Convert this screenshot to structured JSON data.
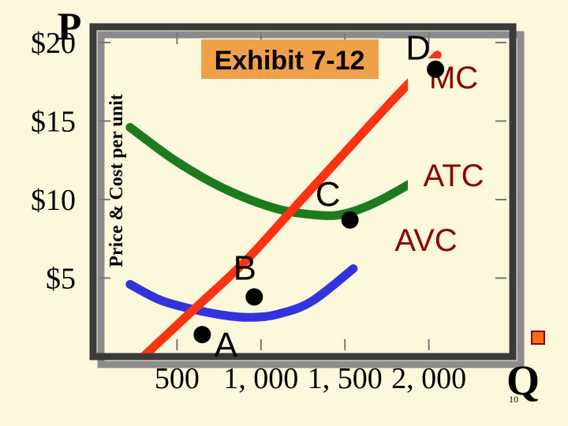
{
  "chart_data": {
    "type": "line",
    "title": "Exhibit 7-12",
    "xlabel": "Q",
    "ylabel": "Price & Cost per unit",
    "y_axis_letter": "P",
    "xlim": [
      0,
      2500
    ],
    "ylim": [
      0,
      21
    ],
    "x_ticks": [
      500,
      1000,
      1500,
      2000
    ],
    "x_tick_labels": [
      "500",
      "1, 000",
      "1, 500",
      "2, 000"
    ],
    "y_ticks": [
      5,
      10,
      15,
      20
    ],
    "y_tick_labels": [
      "$5",
      "$10",
      "$15",
      "$20"
    ],
    "grid": true,
    "series": [
      {
        "name": "MC",
        "color": "#ff3311",
        "x": [
          300,
          600,
          900,
          1200,
          1500,
          1800,
          2050
        ],
        "y": [
          0,
          3,
          6,
          9.5,
          13,
          16.5,
          19.2
        ]
      },
      {
        "name": "ATC",
        "color": "#1e7a1e",
        "x": [
          220,
          500,
          800,
          1100,
          1350,
          1500,
          1700,
          2000
        ],
        "y": [
          14.6,
          12.4,
          10.6,
          9.4,
          9.0,
          9.1,
          9.9,
          11.7
        ]
      },
      {
        "name": "AVC",
        "color": "#3333dd",
        "x": [
          220,
          400,
          600,
          800,
          950,
          1100,
          1300,
          1550
        ],
        "y": [
          4.6,
          3.6,
          3.0,
          2.6,
          2.5,
          2.7,
          3.5,
          5.6
        ]
      }
    ],
    "points": [
      {
        "name": "A",
        "x": 650,
        "y": 1.4
      },
      {
        "name": "B",
        "x": 960,
        "y": 3.8
      },
      {
        "name": "C",
        "x": 1530,
        "y": 8.7
      },
      {
        "name": "D",
        "x": 2040,
        "y": 18.3
      }
    ]
  },
  "page_number": "10",
  "colors": {
    "background": "#fbf8dc",
    "title_box": "#f0a04b",
    "axis": "#3a3a3a",
    "curve_label": "#8b0000",
    "corner_square_fill": "#ff6a13",
    "corner_square_border": "#8b0000"
  }
}
